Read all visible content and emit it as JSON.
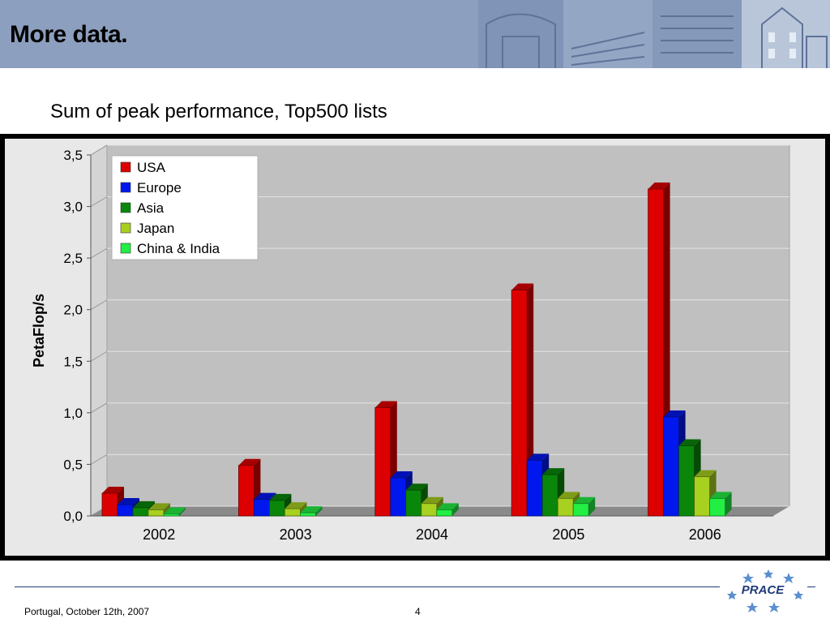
{
  "slide": {
    "title": "More data.",
    "subtitle": "Sum of peak performance, Top500 lists"
  },
  "footer": {
    "left_text": "Portugal, October 12th, 2007",
    "page_number": "4",
    "logo_text": "PRACE"
  },
  "colors": {
    "header": "#8d9fbf",
    "plot_background": "#c0c0c0",
    "chart_background": "#e8e8e8"
  },
  "chart_data": {
    "type": "bar",
    "title": "",
    "xlabel": "",
    "ylabel": "PetaFlop/s",
    "ylim": [
      0,
      3.5
    ],
    "yticks": [
      "0,0",
      "0,5",
      "1,0",
      "1,5",
      "2,0",
      "2,5",
      "3,0",
      "3,5"
    ],
    "ytick_values": [
      0,
      0.5,
      1.0,
      1.5,
      2.0,
      2.5,
      3.0,
      3.5
    ],
    "grid": true,
    "legend_position": "top-left",
    "categories": [
      "2002",
      "2003",
      "2004",
      "2005",
      "2006"
    ],
    "series": [
      {
        "name": "USA",
        "color": "#dd0000",
        "values": [
          0.22,
          0.49,
          1.05,
          2.19,
          3.17
        ]
      },
      {
        "name": "Europe",
        "color": "#0018ee",
        "values": [
          0.11,
          0.16,
          0.37,
          0.54,
          0.96
        ]
      },
      {
        "name": "Asia",
        "color": "#0a870a",
        "values": [
          0.08,
          0.15,
          0.25,
          0.4,
          0.68
        ]
      },
      {
        "name": "Japan",
        "color": "#a8d020",
        "values": [
          0.06,
          0.07,
          0.12,
          0.17,
          0.38
        ]
      },
      {
        "name": "China & India",
        "color": "#22ee44",
        "values": [
          0.02,
          0.03,
          0.06,
          0.12,
          0.17
        ]
      }
    ]
  }
}
